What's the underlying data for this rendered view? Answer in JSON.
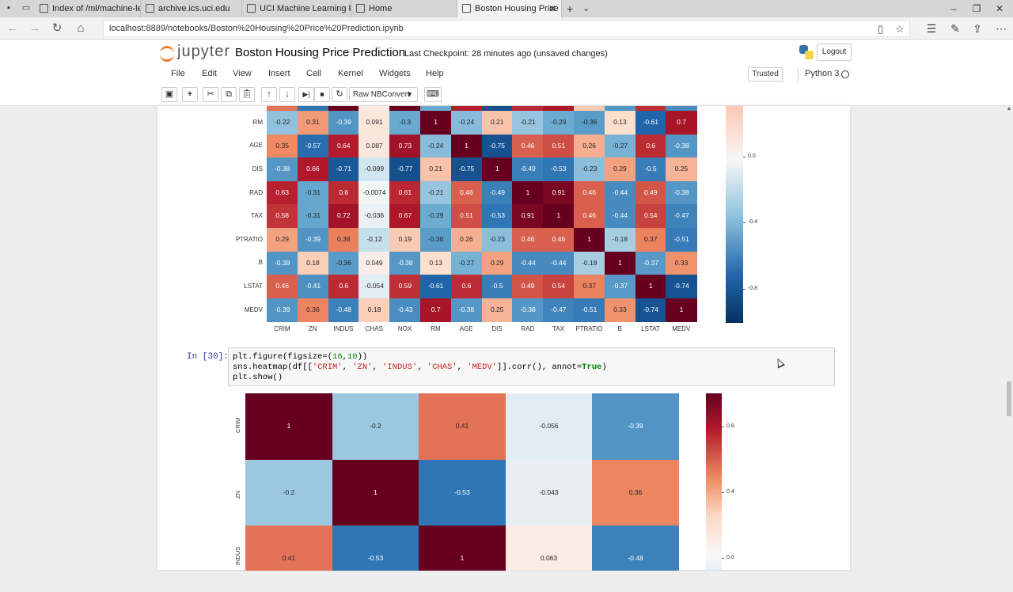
{
  "browser": {
    "tabs": [
      {
        "label": "Index of /ml/machine-learni"
      },
      {
        "label": "archive.ics.uci.edu"
      },
      {
        "label": "UCI Machine Learning Repo"
      },
      {
        "label": "Home"
      },
      {
        "label": "Boston Housing Price P"
      }
    ],
    "url": "localhost:8889/notebooks/Boston%20Housing%20Price%20Prediction.ipynb"
  },
  "jupyter": {
    "logo_text": "jupyter",
    "notebook_title": "Boston Housing Price Prediction",
    "checkpoint": "Last Checkpoint: 28 minutes ago (unsaved changes)",
    "logout": "Logout",
    "menus": [
      "File",
      "Edit",
      "View",
      "Insert",
      "Cell",
      "Kernel",
      "Widgets",
      "Help"
    ],
    "trusted": "Trusted",
    "kernel": "Python 3",
    "cell_type": "Raw NBConvert"
  },
  "cell": {
    "prompt": "In [30]:",
    "lines": [
      "plt.figure(figsize=(16,10))",
      "sns.heatmap(df[['CRIM', 'ZN', 'INDUS', 'CHAS', 'MEDV']].corr(), annot=True)",
      "plt.show()"
    ]
  },
  "chart_data": [
    {
      "type": "heatmap",
      "x_labels": [
        "CRIM",
        "ZN",
        "INDUS",
        "CHAS",
        "NOX",
        "RM",
        "AGE",
        "DIS",
        "RAD",
        "TAX",
        "PTRATIO",
        "B",
        "LSTAT",
        "MEDV"
      ],
      "y_labels": [
        "RM",
        "AGE",
        "DIS",
        "RAD",
        "TAX",
        "PTRATIO",
        "B",
        "LSTAT",
        "MEDV"
      ],
      "annotations": [
        [
          "-0.22",
          "0.31",
          "-0.39",
          "0.091",
          "-0.3",
          "1",
          "-0.24",
          "0.21",
          "-0.21",
          "-0.29",
          "-0.36",
          "0.13",
          "-0.61",
          "0.7"
        ],
        [
          "0.35",
          "-0.57",
          "0.64",
          "0.087",
          "0.73",
          "-0.24",
          "1",
          "-0.75",
          "0.46",
          "0.51",
          "0.26",
          "-0.27",
          "0.6",
          "-0.38"
        ],
        [
          "-0.38",
          "0.66",
          "-0.71",
          "-0.099",
          "-0.77",
          "0.21",
          "-0.75",
          "1",
          "-0.49",
          "-0.53",
          "-0.23",
          "0.29",
          "-0.5",
          "0.25"
        ],
        [
          "0.63",
          "-0.31",
          "0.6",
          "-0.0074",
          "0.61",
          "-0.21",
          "0.46",
          "-0.49",
          "1",
          "0.91",
          "0.46",
          "-0.44",
          "0.49",
          "-0.38"
        ],
        [
          "0.58",
          "-0.31",
          "0.72",
          "-0.036",
          "0.67",
          "-0.29",
          "0.51",
          "-0.53",
          "0.91",
          "1",
          "0.46",
          "-0.44",
          "0.54",
          "-0.47"
        ],
        [
          "0.29",
          "-0.39",
          "0.38",
          "-0.12",
          "0.19",
          "-0.36",
          "0.26",
          "-0.23",
          "0.46",
          "0.46",
          "1",
          "-0.18",
          "0.37",
          "-0.51"
        ],
        [
          "-0.39",
          "0.18",
          "-0.36",
          "0.049",
          "-0.38",
          "0.13",
          "-0.27",
          "0.29",
          "-0.44",
          "-0.44",
          "-0.18",
          "1",
          "-0.37",
          "0.33"
        ],
        [
          "0.46",
          "-0.41",
          "0.6",
          "-0.054",
          "0.59",
          "-0.61",
          "0.6",
          "-0.5",
          "0.49",
          "0.54",
          "0.37",
          "-0.37",
          "1",
          "-0.74"
        ],
        [
          "-0.39",
          "0.36",
          "-0.48",
          "0.18",
          "-0.43",
          "0.7",
          "-0.38",
          "0.25",
          "-0.38",
          "-0.47",
          "-0.51",
          "0.33",
          "-0.74",
          "1"
        ]
      ],
      "colorbar_ticks": [
        "0.0",
        "-0.4",
        "-0.8"
      ],
      "colormap": "RdBu_r"
    },
    {
      "type": "heatmap",
      "x_labels": [],
      "y_labels": [
        "CRIM",
        "ZN",
        "INDUS"
      ],
      "annotations": [
        [
          "1",
          "-0.2",
          "0.41",
          "-0.056",
          "-0.39"
        ],
        [
          "-0.2",
          "1",
          "-0.53",
          "-0.043",
          "0.36"
        ],
        [
          "0.41",
          "-0.53",
          "1",
          "0.063",
          "-0.48"
        ]
      ],
      "colorbar_ticks": [
        "0.8",
        "0.4",
        "0.0"
      ],
      "colormap": "RdBu_r"
    }
  ]
}
